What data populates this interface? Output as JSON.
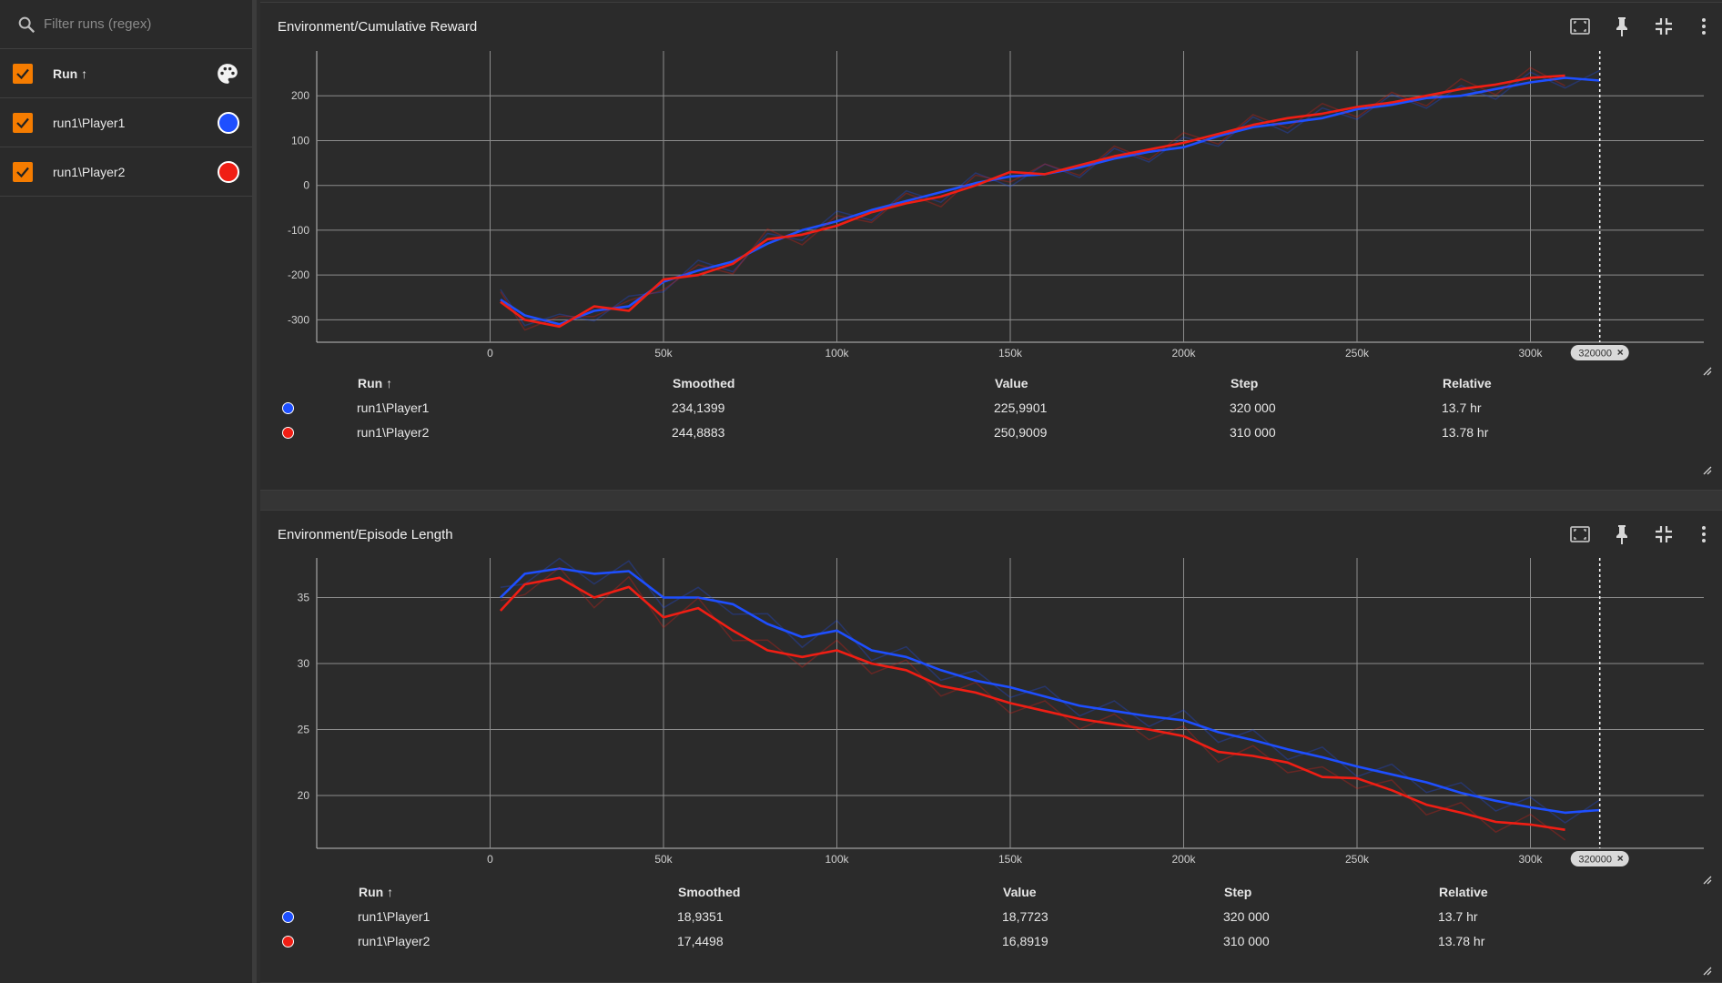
{
  "sidebar": {
    "filter_placeholder": "Filter runs (regex)",
    "header_label": "Run ↑",
    "runs": [
      {
        "label": "run1\\Player1",
        "color": "#1e4fff"
      },
      {
        "label": "run1\\Player2",
        "color": "#f01e14"
      }
    ],
    "checkbox_color": "#f57c00"
  },
  "colors": {
    "player1": "#1e4fff",
    "player2": "#f01e14",
    "grid": "#8c8c8c",
    "background": "#2b2b2b"
  },
  "cards": [
    {
      "title": "Environment/Cumulative Reward",
      "step_marker": "320000",
      "table": {
        "headers": [
          "Run ↑",
          "Smoothed",
          "Value",
          "Step",
          "Relative"
        ],
        "rows": [
          {
            "run": "run1\\Player1",
            "smoothed": "234,1399",
            "value": "225,9901",
            "step": "320 000",
            "relative": "13.7 hr"
          },
          {
            "run": "run1\\Player2",
            "smoothed": "244,8883",
            "value": "250,9009",
            "step": "310 000",
            "relative": "13.78 hr"
          }
        ]
      }
    },
    {
      "title": "Environment/Episode Length",
      "step_marker": "320000",
      "table": {
        "headers": [
          "Run ↑",
          "Smoothed",
          "Value",
          "Step",
          "Relative"
        ],
        "rows": [
          {
            "run": "run1\\Player1",
            "smoothed": "18,9351",
            "value": "18,7723",
            "step": "320 000",
            "relative": "13.7 hr"
          },
          {
            "run": "run1\\Player2",
            "smoothed": "17,4498",
            "value": "16,8919",
            "step": "310 000",
            "relative": "13.78 hr"
          }
        ]
      }
    }
  ],
  "chart_data": [
    {
      "type": "line",
      "xlim": [
        -50000,
        350000
      ],
      "x_ticks": [
        0,
        50000,
        100000,
        150000,
        200000,
        250000,
        300000
      ],
      "x_tick_labels": [
        "0",
        "50k",
        "100k",
        "150k",
        "200k",
        "250k",
        "300k"
      ],
      "ylim": [
        -350,
        300
      ],
      "y_ticks": [
        -300,
        -200,
        -100,
        0,
        100,
        200
      ],
      "y_tick_labels": [
        "-300",
        "-200",
        "-100",
        "0",
        "100",
        "200"
      ],
      "grid": true,
      "series": [
        {
          "name": "run1\\Player1",
          "color": "#1e4fff",
          "x": [
            3000,
            10000,
            20000,
            30000,
            40000,
            50000,
            60000,
            70000,
            80000,
            90000,
            100000,
            110000,
            120000,
            130000,
            140000,
            150000,
            160000,
            170000,
            180000,
            190000,
            200000,
            210000,
            220000,
            230000,
            240000,
            250000,
            260000,
            270000,
            280000,
            290000,
            300000,
            310000,
            320000
          ],
          "y": [
            -255,
            -290,
            -310,
            -280,
            -270,
            -215,
            -190,
            -170,
            -130,
            -100,
            -80,
            -55,
            -35,
            -15,
            5,
            20,
            25,
            40,
            60,
            75,
            85,
            110,
            130,
            140,
            150,
            170,
            180,
            195,
            200,
            215,
            230,
            240,
            234
          ]
        },
        {
          "name": "run1\\Player2",
          "color": "#f01e14",
          "x": [
            3000,
            10000,
            20000,
            30000,
            40000,
            50000,
            60000,
            70000,
            80000,
            90000,
            100000,
            110000,
            120000,
            130000,
            140000,
            150000,
            160000,
            170000,
            180000,
            190000,
            200000,
            210000,
            220000,
            230000,
            240000,
            250000,
            260000,
            270000,
            280000,
            290000,
            300000,
            310000
          ],
          "y": [
            -260,
            -300,
            -315,
            -270,
            -280,
            -210,
            -200,
            -175,
            -120,
            -110,
            -90,
            -60,
            -40,
            -25,
            0,
            30,
            25,
            45,
            65,
            80,
            95,
            115,
            135,
            150,
            160,
            175,
            185,
            200,
            215,
            225,
            240,
            245
          ]
        }
      ]
    },
    {
      "type": "line",
      "xlim": [
        -50000,
        350000
      ],
      "x_ticks": [
        0,
        50000,
        100000,
        150000,
        200000,
        250000,
        300000
      ],
      "x_tick_labels": [
        "0",
        "50k",
        "100k",
        "150k",
        "200k",
        "250k",
        "300k"
      ],
      "ylim": [
        16,
        38
      ],
      "y_ticks": [
        20,
        25,
        30,
        35
      ],
      "y_tick_labels": [
        "20",
        "25",
        "30",
        "35"
      ],
      "grid": true,
      "series": [
        {
          "name": "run1\\Player1",
          "color": "#1e4fff",
          "x": [
            3000,
            10000,
            20000,
            30000,
            40000,
            50000,
            60000,
            70000,
            80000,
            90000,
            100000,
            110000,
            120000,
            130000,
            140000,
            150000,
            160000,
            170000,
            180000,
            190000,
            200000,
            210000,
            220000,
            230000,
            240000,
            250000,
            260000,
            270000,
            280000,
            290000,
            300000,
            310000,
            320000
          ],
          "y": [
            35,
            36.8,
            37.2,
            36.8,
            37,
            35,
            35,
            34.5,
            33,
            32,
            32.5,
            31,
            30.5,
            29.5,
            28.7,
            28.2,
            27.5,
            26.8,
            26.4,
            26,
            25.7,
            24.8,
            24.2,
            23.5,
            22.9,
            22.2,
            21.6,
            21,
            20.2,
            19.6,
            19.1,
            18.7,
            18.9
          ]
        },
        {
          "name": "run1\\Player2",
          "color": "#f01e14",
          "x": [
            3000,
            10000,
            20000,
            30000,
            40000,
            50000,
            60000,
            70000,
            80000,
            90000,
            100000,
            110000,
            120000,
            130000,
            140000,
            150000,
            160000,
            170000,
            180000,
            190000,
            200000,
            210000,
            220000,
            230000,
            240000,
            250000,
            260000,
            270000,
            280000,
            290000,
            300000,
            310000
          ],
          "y": [
            34,
            36,
            36.5,
            35,
            35.8,
            33.5,
            34.2,
            32.5,
            31,
            30.5,
            31,
            30,
            29.5,
            28.3,
            27.8,
            27,
            26.4,
            25.8,
            25.4,
            25,
            24.5,
            23.3,
            23,
            22.5,
            21.4,
            21.3,
            20.4,
            19.3,
            18.7,
            18,
            17.8,
            17.4
          ]
        }
      ]
    }
  ]
}
